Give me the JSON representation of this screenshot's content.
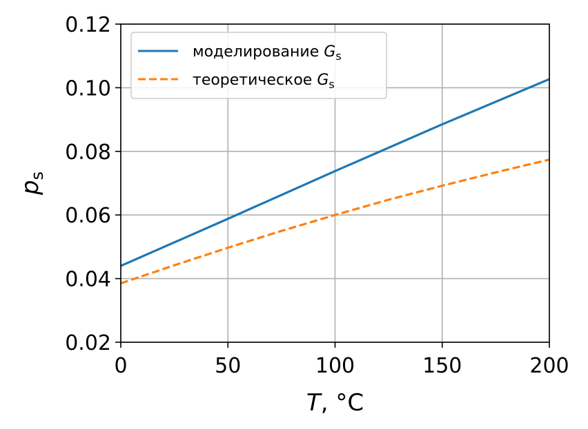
{
  "chart_data": {
    "type": "line",
    "title": "",
    "xlabel": {
      "var": "T",
      "unit": ", °C"
    },
    "ylabel": {
      "var": "p",
      "sub": "s"
    },
    "xlim": [
      0,
      200
    ],
    "ylim": [
      0.02,
      0.12
    ],
    "xticks": [
      0,
      50,
      100,
      150,
      200
    ],
    "xtick_labels": [
      "0",
      "50",
      "100",
      "150",
      "200"
    ],
    "yticks": [
      0.02,
      0.04,
      0.06,
      0.08,
      0.1,
      0.12
    ],
    "ytick_labels": [
      "0.02",
      "0.04",
      "0.06",
      "0.08",
      "0.10",
      "0.12"
    ],
    "grid": true,
    "legend_position": "top-left",
    "series": [
      {
        "name": {
          "text": "моделирование ",
          "var": "G",
          "sub": "s"
        },
        "color": "#1f77b4",
        "dash": "solid",
        "x": [
          0,
          50,
          100,
          150,
          200
        ],
        "y": [
          0.044,
          0.0588,
          0.0738,
          0.0885,
          0.1027
        ]
      },
      {
        "name": {
          "text": "теоретическое ",
          "var": "G",
          "sub": "s"
        },
        "color": "#ff7f0e",
        "dash": "dashed",
        "x": [
          0,
          25,
          50,
          75,
          100,
          125,
          150,
          175,
          200
        ],
        "y": [
          0.0385,
          0.0442,
          0.0497,
          0.055,
          0.06,
          0.0648,
          0.0692,
          0.0734,
          0.0774
        ]
      }
    ]
  }
}
